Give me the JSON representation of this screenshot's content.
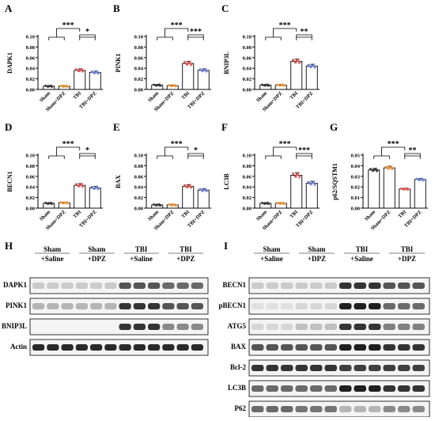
{
  "chart_data": [
    {
      "type": "bar",
      "panel": "A",
      "ylabel": "DAPK1",
      "ylim": [
        0,
        0.1
      ],
      "yticks": [
        "0.00",
        "0.02",
        "0.04",
        "0.06",
        "0.08",
        "0.10"
      ],
      "categories": [
        "Sham",
        "Sham+DPZ",
        "TBI",
        "TBI+DPZ"
      ],
      "values": [
        0.006,
        0.006,
        0.036,
        0.032
      ],
      "significance": [
        "***",
        "*"
      ]
    },
    {
      "type": "bar",
      "panel": "B",
      "ylabel": "PINK1",
      "ylim": [
        0,
        0.1
      ],
      "yticks": [
        "0.00",
        "0.02",
        "0.04",
        "0.06",
        "0.08",
        "0.10"
      ],
      "categories": [
        "Sham",
        "Sham+DPZ",
        "TBI",
        "TBI+DPZ"
      ],
      "values": [
        0.008,
        0.007,
        0.049,
        0.036
      ],
      "significance": [
        "***",
        "***"
      ]
    },
    {
      "type": "bar",
      "panel": "C",
      "ylabel": "BNIP3L",
      "ylim": [
        0,
        0.1
      ],
      "yticks": [
        "0.00",
        "0.02",
        "0.04",
        "0.06",
        "0.08",
        "0.10"
      ],
      "categories": [
        "Sham",
        "Sham+DPZ",
        "TBI",
        "TBI+DPZ"
      ],
      "values": [
        0.008,
        0.008,
        0.053,
        0.044
      ],
      "significance": [
        "***",
        "**"
      ]
    },
    {
      "type": "bar",
      "panel": "D",
      "ylabel": "BECN1",
      "ylim": [
        0,
        0.1
      ],
      "yticks": [
        "0.00",
        "0.02",
        "0.04",
        "0.06",
        "0.08",
        "0.10"
      ],
      "categories": [
        "Sham",
        "Sham+DPZ",
        "TBI",
        "TBI+DPZ"
      ],
      "values": [
        0.009,
        0.01,
        0.043,
        0.038
      ],
      "significance": [
        "***",
        "*"
      ]
    },
    {
      "type": "bar",
      "panel": "E",
      "ylabel": "BAX",
      "ylim": [
        0,
        0.1
      ],
      "yticks": [
        "0.00",
        "0.02",
        "0.04",
        "0.06",
        "0.08",
        "0.10"
      ],
      "categories": [
        "Sham",
        "Sham+DPZ",
        "TBI",
        "TBI+DPZ"
      ],
      "values": [
        0.006,
        0.006,
        0.041,
        0.034
      ],
      "significance": [
        "***",
        "*"
      ]
    },
    {
      "type": "bar",
      "panel": "F",
      "ylabel": "LC3B",
      "ylim": [
        0,
        0.1
      ],
      "yticks": [
        "0.00",
        "0.02",
        "0.04",
        "0.06",
        "0.08",
        "0.10"
      ],
      "categories": [
        "Sham",
        "Sham+DPZ",
        "TBI",
        "TBI+DPZ"
      ],
      "values": [
        0.009,
        0.009,
        0.062,
        0.047
      ],
      "significance": [
        "***",
        "***"
      ]
    },
    {
      "type": "bar",
      "panel": "G",
      "ylabel": "p62/SQSTM1",
      "ylim": [
        0,
        0.05
      ],
      "yticks": [
        "0.00",
        "0.01",
        "0.02",
        "0.03",
        "0.04",
        "0.05"
      ],
      "categories": [
        "Sham",
        "Sham+DPZ",
        "TBI",
        "TBI+DPZ"
      ],
      "values": [
        0.036,
        0.038,
        0.018,
        0.027
      ],
      "significance": [
        "***",
        "**"
      ]
    }
  ],
  "blots": [
    {
      "panel": "H",
      "groups": [
        "Sham\n+Saline",
        "Sham\n+DPZ",
        "TBI\n+Saline",
        "TBI\n+DPZ"
      ],
      "rows": [
        {
          "label": "DAPK1",
          "levels": [
            0.15,
            0.15,
            0.7,
            0.6
          ]
        },
        {
          "label": "PINK1",
          "levels": [
            0.25,
            0.25,
            0.85,
            0.7
          ]
        },
        {
          "label": "BNIP3L",
          "levels": [
            0.0,
            0.0,
            0.85,
            0.45
          ]
        },
        {
          "label": "Actin",
          "levels": [
            0.9,
            0.9,
            0.9,
            0.9
          ]
        }
      ]
    },
    {
      "panel": "I",
      "groups": [
        "Sham\n+Saline",
        "Sham\n+DPZ",
        "TBI\n+Saline",
        "TBI\n+DPZ"
      ],
      "rows": [
        {
          "label": "BECN1",
          "levels": [
            0.15,
            0.15,
            0.85,
            0.7
          ]
        },
        {
          "label": "pBECN1",
          "levels": [
            0.05,
            0.1,
            0.95,
            0.6
          ]
        },
        {
          "label": "ATG5",
          "levels": [
            0.1,
            0.2,
            0.85,
            0.5
          ]
        },
        {
          "label": "BAX",
          "levels": [
            0.7,
            0.7,
            0.95,
            0.85
          ]
        },
        {
          "label": "Bcl-2",
          "levels": [
            0.85,
            0.85,
            0.8,
            0.8
          ]
        },
        {
          "label": "LC3B",
          "levels": [
            0.6,
            0.6,
            0.95,
            0.85
          ]
        },
        {
          "label": "P62",
          "levels": [
            0.6,
            0.55,
            0.25,
            0.45
          ]
        },
        {
          "label": "Actin",
          "levels": [
            0.9,
            0.9,
            0.9,
            0.9
          ]
        }
      ]
    }
  ],
  "colors": {
    "bar_fill": "#ffffff",
    "dots": [
      "#333333",
      "#e8912d",
      "#d9534f",
      "#6b7fd7"
    ]
  }
}
